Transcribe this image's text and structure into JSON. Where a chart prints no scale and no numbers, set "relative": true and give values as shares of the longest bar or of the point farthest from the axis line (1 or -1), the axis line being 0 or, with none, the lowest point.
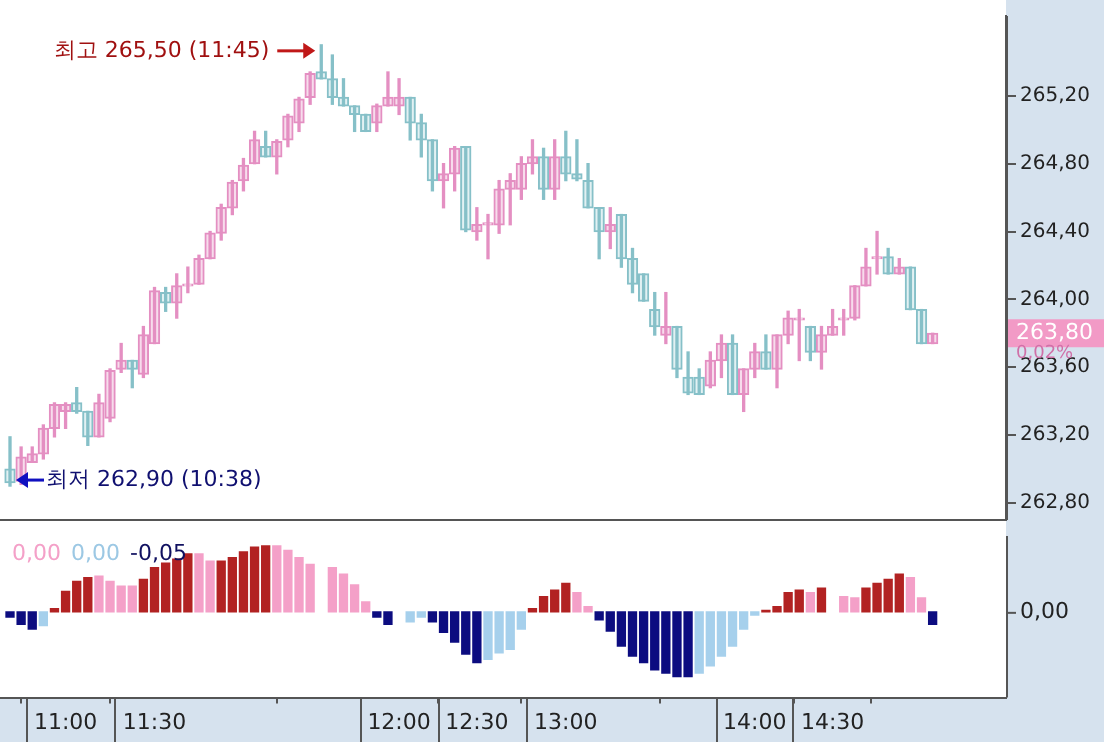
{
  "chart_data": [
    {
      "type": "candlestick",
      "tick_labels": "y",
      "categories": [
        null,
        null,
        null,
        null,
        null,
        null,
        null,
        null,
        null,
        null,
        null,
        null,
        null,
        null,
        null,
        null,
        null,
        null,
        null,
        null,
        null,
        null,
        null,
        null,
        null,
        null,
        null,
        null,
        null,
        null,
        null,
        null,
        null,
        null,
        null,
        null,
        null,
        null,
        null,
        null,
        null,
        null,
        null,
        null,
        null,
        null,
        null,
        null,
        null,
        null,
        null,
        null,
        null,
        null,
        null,
        null,
        null,
        null,
        null,
        null,
        null,
        null,
        null,
        null,
        null,
        null,
        null,
        null,
        null,
        null,
        null,
        null,
        null,
        null,
        null,
        null,
        null,
        null,
        null,
        null,
        null,
        null,
        null,
        null
      ],
      "ylim": [
        262.7,
        265.67
      ],
      "yticks": [
        {
          "value": 262.8,
          "label": "262,80"
        },
        {
          "value": 263.2,
          "label": "263,20"
        },
        {
          "value": 263.6,
          "label": "263,60"
        },
        {
          "value": 264.0,
          "label": "264,00"
        },
        {
          "value": 264.4,
          "label": "264,40"
        },
        {
          "value": 264.8,
          "label": "264,80"
        },
        {
          "value": 265.2,
          "label": "265,20"
        }
      ],
      "annotations": [
        "최고 265,50 (11:45)",
        "최저 262,90 (10:38)",
        "263,80",
        "0,02%"
      ],
      "ohlc": [
        [
          263.0,
          263.19,
          262.9,
          262.92
        ],
        [
          262.93,
          263.13,
          262.91,
          263.07
        ],
        [
          263.04,
          263.13,
          263.04,
          263.09
        ],
        [
          263.09,
          263.26,
          263.06,
          263.24
        ],
        [
          263.24,
          263.39,
          263.19,
          263.38
        ],
        [
          263.34,
          263.39,
          263.24,
          263.38
        ],
        [
          263.39,
          263.48,
          263.33,
          263.34
        ],
        [
          263.34,
          263.34,
          263.14,
          263.19
        ],
        [
          263.19,
          263.44,
          263.19,
          263.39
        ],
        [
          263.3,
          263.59,
          263.28,
          263.58
        ],
        [
          263.59,
          263.74,
          263.57,
          263.64
        ],
        [
          263.64,
          263.64,
          263.48,
          263.59
        ],
        [
          263.56,
          263.84,
          263.54,
          263.79
        ],
        [
          263.74,
          264.07,
          263.74,
          264.05
        ],
        [
          264.04,
          264.07,
          263.93,
          263.98
        ],
        [
          263.98,
          264.15,
          263.89,
          264.08
        ],
        [
          264.08,
          264.19,
          264.04,
          264.09
        ],
        [
          264.09,
          264.26,
          264.09,
          264.24
        ],
        [
          264.24,
          264.4,
          264.24,
          264.39
        ],
        [
          264.39,
          264.56,
          264.35,
          264.54
        ],
        [
          264.54,
          264.7,
          264.5,
          264.69
        ],
        [
          264.7,
          264.83,
          264.64,
          264.79
        ],
        [
          264.8,
          264.99,
          264.8,
          264.94
        ],
        [
          264.9,
          264.99,
          264.84,
          264.84
        ],
        [
          264.84,
          264.94,
          264.74,
          264.93
        ],
        [
          264.94,
          265.09,
          264.9,
          265.08
        ],
        [
          265.04,
          265.19,
          264.99,
          265.18
        ],
        [
          265.19,
          265.34,
          265.15,
          265.33
        ],
        [
          265.34,
          265.5,
          265.3,
          265.3
        ],
        [
          265.3,
          265.44,
          265.15,
          265.19
        ],
        [
          265.19,
          265.3,
          265.14,
          265.14
        ],
        [
          265.14,
          265.14,
          264.99,
          265.09
        ],
        [
          265.09,
          265.09,
          264.99,
          264.99
        ],
        [
          265.04,
          265.15,
          264.99,
          265.14
        ],
        [
          265.14,
          265.34,
          265.14,
          265.19
        ],
        [
          265.14,
          265.3,
          265.09,
          265.19
        ],
        [
          265.19,
          265.19,
          264.94,
          265.04
        ],
        [
          265.04,
          265.09,
          264.84,
          264.94
        ],
        [
          264.94,
          264.94,
          264.64,
          264.7
        ],
        [
          264.7,
          264.8,
          264.54,
          264.74
        ],
        [
          264.74,
          264.9,
          264.64,
          264.89
        ],
        [
          264.9,
          264.9,
          264.4,
          264.41
        ],
        [
          264.4,
          264.54,
          264.35,
          264.44
        ],
        [
          264.44,
          264.5,
          264.24,
          264.45
        ],
        [
          264.44,
          264.7,
          264.39,
          264.65
        ],
        [
          264.65,
          264.74,
          264.44,
          264.7
        ],
        [
          264.65,
          264.84,
          264.59,
          264.8
        ],
        [
          264.8,
          264.94,
          264.74,
          264.84
        ],
        [
          264.84,
          264.89,
          264.59,
          264.65
        ],
        [
          264.65,
          264.94,
          264.59,
          264.84
        ],
        [
          264.84,
          264.99,
          264.7,
          264.74
        ],
        [
          264.74,
          264.94,
          264.7,
          264.71
        ],
        [
          264.7,
          264.8,
          264.54,
          264.54
        ],
        [
          264.54,
          264.54,
          264.24,
          264.4
        ],
        [
          264.4,
          264.54,
          264.3,
          264.44
        ],
        [
          264.5,
          264.5,
          264.19,
          264.24
        ],
        [
          264.24,
          264.3,
          264.04,
          264.09
        ],
        [
          264.15,
          264.15,
          263.99,
          263.99
        ],
        [
          263.94,
          264.04,
          263.79,
          263.84
        ],
        [
          263.79,
          264.04,
          263.74,
          263.84
        ],
        [
          263.84,
          263.84,
          263.54,
          263.59
        ],
        [
          263.54,
          263.69,
          263.44,
          263.45
        ],
        [
          263.54,
          263.59,
          263.44,
          263.44
        ],
        [
          263.49,
          263.69,
          263.48,
          263.64
        ],
        [
          263.64,
          263.79,
          263.54,
          263.74
        ],
        [
          263.74,
          263.79,
          263.44,
          263.44
        ],
        [
          263.44,
          263.59,
          263.34,
          263.59
        ],
        [
          263.59,
          263.74,
          263.54,
          263.69
        ],
        [
          263.69,
          263.79,
          263.59,
          263.59
        ],
        [
          263.59,
          263.79,
          263.48,
          263.79
        ],
        [
          263.79,
          263.93,
          263.74,
          263.89
        ],
        [
          263.88,
          263.94,
          263.64,
          263.89
        ],
        [
          263.84,
          263.84,
          263.64,
          263.69
        ],
        [
          263.69,
          263.84,
          263.59,
          263.79
        ],
        [
          263.79,
          263.94,
          263.79,
          263.84
        ],
        [
          263.88,
          263.94,
          263.79,
          263.89
        ],
        [
          263.89,
          264.08,
          263.88,
          264.08
        ],
        [
          264.08,
          264.3,
          264.08,
          264.19
        ],
        [
          264.24,
          264.4,
          264.15,
          264.25
        ],
        [
          264.25,
          264.3,
          264.15,
          264.15
        ],
        [
          264.15,
          264.24,
          264.15,
          264.19
        ],
        [
          264.19,
          264.19,
          263.94,
          263.94
        ],
        [
          263.94,
          263.94,
          263.74,
          263.74
        ],
        [
          263.74,
          263.8,
          263.74,
          263.8
        ]
      ]
    },
    {
      "type": "bar",
      "relative": true,
      "categories": [
        null,
        null,
        null,
        null,
        null,
        "11:00",
        null,
        null,
        null,
        null,
        null,
        null,
        null,
        "11:30",
        null,
        null,
        null,
        null,
        null,
        null,
        null,
        null,
        null,
        null,
        null,
        null,
        null,
        null,
        null,
        null,
        null,
        null,
        null,
        null,
        null,
        "12:00",
        null,
        null,
        null,
        null,
        null,
        null,
        "12:30",
        null,
        null,
        null,
        null,
        null,
        null,
        null,
        "13:00",
        null,
        null,
        null,
        null,
        null,
        null,
        null,
        null,
        null,
        null,
        null,
        null,
        null,
        null,
        null,
        null,
        "14:00",
        null,
        null,
        null,
        null,
        null,
        null,
        "14:30",
        null,
        null,
        null,
        null,
        null,
        null,
        null,
        null,
        null
      ],
      "annotations": [
        "0,00",
        "0,00",
        "-0,05",
        "0,00"
      ],
      "values": [
        -0.08,
        -0.19,
        -0.26,
        -0.21,
        0.05,
        0.31,
        0.46,
        0.52,
        0.54,
        0.46,
        0.39,
        0.39,
        0.49,
        0.67,
        0.74,
        0.8,
        0.88,
        0.88,
        0.77,
        0.77,
        0.82,
        0.91,
        0.98,
        1,
        1,
        0.93,
        0.82,
        0.72,
        null,
        0.67,
        0.57,
        0.41,
        0.15,
        -0.08,
        -0.19,
        null,
        -0.15,
        -0.08,
        -0.15,
        -0.31,
        -0.46,
        -0.64,
        -0.77,
        -0.72,
        -0.62,
        -0.57,
        -0.26,
        0.05,
        0.23,
        0.33,
        0.43,
        0.29,
        0.08,
        -0.12,
        -0.29,
        -0.52,
        -0.67,
        -0.77,
        -0.88,
        -0.93,
        -0.98,
        -0.98,
        -0.93,
        -0.82,
        -0.67,
        -0.52,
        -0.26,
        -0.05,
        0.02,
        0.08,
        0.29,
        0.33,
        0.29,
        0.36,
        null,
        0.23,
        0.21,
        0.36,
        0.43,
        0.49,
        0.57,
        0.52,
        0.21,
        -0.19
      ],
      "colors": [
        "#0c0c80",
        "#0c0c80",
        "#0c0c80",
        "#a6d0ec",
        "#b22222",
        "#b22222",
        "#b22222",
        "#b22222",
        "#f4a0c8",
        "#f4a0c8",
        "#f4a0c8",
        "#f4a0c8",
        "#b22222",
        "#b22222",
        "#b22222",
        "#b22222",
        "#b22222",
        "#f4a0c8",
        "#f4a0c8",
        "#b22222",
        "#b22222",
        "#b22222",
        "#b22222",
        "#b22222",
        "#f4a0c8",
        "#f4a0c8",
        "#f4a0c8",
        "#f4a0c8",
        "#f4a0c8",
        "#f4a0c8",
        "#f4a0c8",
        "#f4a0c8",
        "#f4a0c8",
        "#0c0c80",
        "#0c0c80",
        "#a6d0ec",
        "#a6d0ec",
        "#a6d0ec",
        "#0c0c80",
        "#0c0c80",
        "#0c0c80",
        "#0c0c80",
        "#0c0c80",
        "#a6d0ec",
        "#a6d0ec",
        "#a6d0ec",
        "#a6d0ec",
        "#b22222",
        "#b22222",
        "#b22222",
        "#b22222",
        "#f4a0c8",
        "#f4a0c8",
        "#0c0c80",
        "#0c0c80",
        "#0c0c80",
        "#0c0c80",
        "#0c0c80",
        "#0c0c80",
        "#0c0c80",
        "#0c0c80",
        "#0c0c80",
        "#a6d0ec",
        "#a6d0ec",
        "#a6d0ec",
        "#a6d0ec",
        "#a6d0ec",
        "#a6d0ec",
        "#b22222",
        "#b22222",
        "#b22222",
        "#b22222",
        "#f4a0c8",
        "#b22222",
        "#f4a0c8",
        "#f4a0c8",
        "#f4a0c8",
        "#b22222",
        "#b22222",
        "#b22222",
        "#b22222",
        "#f4a0c8",
        "#f4a0c8",
        "#0c0c80"
      ]
    }
  ]
}
